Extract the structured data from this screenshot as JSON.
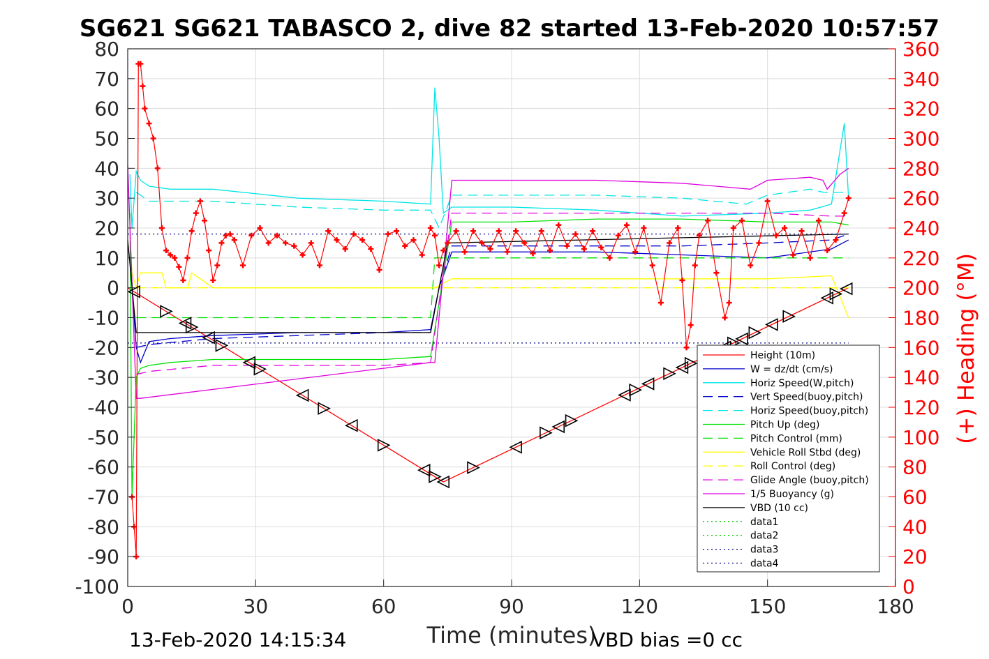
{
  "chart_data": {
    "type": "line",
    "title": "SG621 SG621 TABASCO 2, dive 82 started 13-Feb-2020 10:57:57",
    "xlabel": "Time (minutes)",
    "ylabel": "",
    "y2label": "(+) Heading (°M)",
    "footer_left": "13-Feb-2020 14:15:34",
    "footer_right": "VBD bias =0 cc",
    "xlim": [
      0,
      180
    ],
    "ylim": [
      -100,
      80
    ],
    "y2lim": [
      0,
      360
    ],
    "xticks": [
      "0",
      "30",
      "60",
      "90",
      "120",
      "150",
      "180"
    ],
    "yticks": [
      "80",
      "70",
      "60",
      "50",
      "40",
      "30",
      "20",
      "10",
      "0",
      "-10",
      "-20",
      "-30",
      "-40",
      "-50",
      "-60",
      "-70",
      "-80",
      "-90",
      "-100"
    ],
    "y2ticks": [
      "360",
      "340",
      "320",
      "300",
      "280",
      "260",
      "240",
      "220",
      "200",
      "180",
      "160",
      "140",
      "120",
      "100",
      "80",
      "60",
      "40",
      "20",
      "0"
    ],
    "grid": true,
    "legend_position": "bottom-right",
    "series": [
      {
        "name": "Height (10m)",
        "color": "#ff0000",
        "style": "solid",
        "x": [
          0,
          74,
          169
        ],
        "y": [
          0,
          -65,
          0
        ]
      },
      {
        "name": "W = dz/dt (cm/s)",
        "color": "#0000cc",
        "style": "solid",
        "x": [
          0.5,
          1,
          2,
          3,
          5,
          10,
          20,
          40,
          60,
          71,
          73,
          76,
          90,
          110,
          130,
          150,
          165,
          169
        ],
        "y": [
          20,
          0,
          -20,
          -25,
          -18,
          -17,
          -16,
          -15,
          -15,
          -14,
          0,
          12,
          12,
          12,
          11,
          10,
          13,
          16
        ]
      },
      {
        "name": "Horiz Speed(W,pitch)",
        "color": "#00e5e5",
        "style": "solid",
        "x": [
          0.5,
          1,
          2,
          3,
          5,
          10,
          20,
          40,
          60,
          71,
          72,
          73,
          74,
          76,
          90,
          110,
          130,
          150,
          160,
          165,
          168,
          169
        ],
        "y": [
          38,
          20,
          39,
          36,
          34,
          33,
          33,
          30,
          29,
          28,
          67,
          50,
          25,
          27,
          27,
          26,
          24,
          25,
          26,
          28,
          55,
          30
        ]
      },
      {
        "name": "Vert Speed(buoy,pitch)",
        "color": "#0000cc",
        "style": "dashed",
        "x": [
          2,
          5,
          20,
          40,
          60,
          71,
          73,
          76,
          90,
          110,
          130,
          150,
          165,
          169
        ],
        "y": [
          -20,
          -19,
          -17,
          -16,
          -15,
          -15,
          0,
          14,
          14,
          14,
          14,
          15,
          16,
          18
        ]
      },
      {
        "name": "Horiz Speed(buoy,pitch)",
        "color": "#00e5e5",
        "style": "dashed",
        "x": [
          2,
          5,
          20,
          40,
          60,
          71,
          73,
          76,
          90,
          110,
          130,
          145,
          150,
          160,
          163,
          169
        ],
        "y": [
          32,
          29,
          29,
          27,
          26,
          26,
          20,
          31,
          31,
          31,
          30,
          28,
          31,
          33,
          32,
          32
        ]
      },
      {
        "name": "Pitch Up (deg)",
        "color": "#00e000",
        "style": "solid",
        "x": [
          0.5,
          1,
          2,
          3,
          5,
          10,
          20,
          40,
          60,
          71,
          73,
          76,
          90,
          110,
          130,
          150,
          165,
          169
        ],
        "y": [
          25,
          -70,
          -30,
          -27,
          -26,
          -25,
          -24,
          -24,
          -24,
          -23,
          -5,
          22,
          22,
          23,
          23,
          22,
          22,
          21
        ]
      },
      {
        "name": "Pitch Control (mm)",
        "color": "#00e000",
        "style": "dashed",
        "x": [
          2,
          71,
          72,
          169
        ],
        "y": [
          -10,
          -10,
          10,
          10
        ]
      },
      {
        "name": "Vehicle Roll Stbd (deg)",
        "color": "#ffff00",
        "style": "solid",
        "x": [
          0.5,
          1,
          2,
          3,
          8,
          9,
          14,
          15,
          20,
          22,
          40,
          60,
          70,
          72,
          76,
          90,
          110,
          130,
          150,
          165,
          169
        ],
        "y": [
          20,
          5,
          0,
          5,
          5,
          0,
          0,
          5,
          0,
          0,
          0,
          0,
          0,
          0,
          3,
          3,
          3,
          3,
          3,
          4,
          -10
        ]
      },
      {
        "name": "Roll Control (deg)",
        "color": "#ffff00",
        "style": "dashed",
        "x": [
          2,
          71,
          72,
          169
        ],
        "y": [
          0,
          0,
          0,
          0
        ]
      },
      {
        "name": "Glide Angle (buoy,pitch)",
        "color": "#e000e0",
        "style": "dashed",
        "x": [
          2,
          5,
          20,
          40,
          60,
          71,
          73,
          76,
          90,
          110,
          130,
          150,
          165,
          169
        ],
        "y": [
          -29,
          -28,
          -26,
          -26,
          -26,
          -25,
          -5,
          25,
          25,
          25,
          25,
          25,
          24,
          24
        ]
      },
      {
        "name": "1/5 Buoyancy (g)",
        "color": "#e000e0",
        "style": "solid",
        "x": [
          0,
          2,
          3,
          71,
          72,
          76,
          90,
          110,
          130,
          146,
          150,
          160,
          163,
          164,
          167,
          169
        ],
        "y": [
          41,
          -37,
          -37,
          -25,
          -25,
          36,
          36,
          36,
          35,
          33,
          36,
          37,
          36,
          33,
          38,
          40
        ]
      },
      {
        "name": "VBD (10 cc)",
        "color": "#000000",
        "style": "solid",
        "x": [
          0,
          2,
          71,
          75,
          169
        ],
        "y": [
          16,
          -15,
          -15,
          15,
          18
        ]
      },
      {
        "name": "data1",
        "color": "#00cc00",
        "style": "dotted",
        "x": [],
        "y": []
      },
      {
        "name": "data2",
        "color": "#00cc00",
        "style": "dotted",
        "x": [],
        "y": []
      },
      {
        "name": "data3",
        "color": "#000080",
        "style": "dotted",
        "x": [
          0,
          169
        ],
        "y": [
          18,
          18
        ]
      },
      {
        "name": "data4",
        "color": "#000080",
        "style": "dotted",
        "x": [
          0,
          169
        ],
        "y": [
          -18.5,
          -18.5
        ]
      }
    ],
    "heading": {
      "color": "#ff0000",
      "marker": "+",
      "axis": "right",
      "x": [
        1,
        1.5,
        2,
        2.5,
        3,
        3.5,
        4,
        5,
        6,
        7,
        8,
        9,
        10,
        11,
        12,
        13,
        14,
        15,
        16,
        17,
        18,
        19,
        20,
        21,
        22,
        23,
        24,
        25,
        27,
        29,
        31,
        33,
        35,
        37,
        39,
        41,
        43,
        45,
        47,
        49,
        51,
        53,
        55,
        57,
        59,
        61,
        63,
        65,
        67,
        69,
        71,
        72,
        73,
        74,
        75,
        77,
        79,
        81,
        83,
        85,
        87,
        89,
        91,
        93,
        95,
        97,
        99,
        101,
        103,
        105,
        107,
        109,
        111,
        113,
        115,
        117,
        119,
        121,
        123,
        125,
        127,
        129,
        130,
        131,
        132,
        133,
        134,
        136,
        138,
        140,
        141,
        142,
        144,
        146,
        148,
        150,
        152,
        154,
        156,
        158,
        160,
        162,
        164,
        166,
        168,
        169
      ],
      "y": [
        60,
        40,
        20,
        350,
        350,
        335,
        320,
        310,
        300,
        280,
        240,
        225,
        222,
        220,
        214,
        205,
        220,
        238,
        250,
        258,
        245,
        225,
        205,
        215,
        230,
        235,
        236,
        232,
        215,
        235,
        240,
        230,
        235,
        230,
        228,
        222,
        230,
        215,
        238,
        232,
        226,
        236,
        232,
        226,
        212,
        236,
        238,
        228,
        232,
        222,
        240,
        235,
        215,
        225,
        230,
        238,
        224,
        238,
        230,
        226,
        238,
        224,
        238,
        230,
        223,
        238,
        225,
        242,
        228,
        236,
        226,
        238,
        227,
        220,
        235,
        242,
        224,
        240,
        215,
        190,
        230,
        240,
        205,
        160,
        175,
        215,
        235,
        245,
        210,
        180,
        190,
        240,
        245,
        215,
        230,
        258,
        235,
        240,
        222,
        238,
        220,
        245,
        225,
        232,
        250,
        260
      ]
    },
    "triangles": {
      "color": "#000000",
      "x": [
        1.5,
        9,
        13.5,
        15,
        19,
        22,
        28.5,
        31,
        41,
        46,
        52.5,
        60,
        69.5,
        72,
        74,
        81,
        91,
        98,
        101,
        104,
        116.5,
        119,
        122,
        127,
        130,
        132,
        136,
        138,
        140,
        142,
        144,
        147,
        151,
        155,
        164,
        166,
        168.5
      ]
    }
  }
}
